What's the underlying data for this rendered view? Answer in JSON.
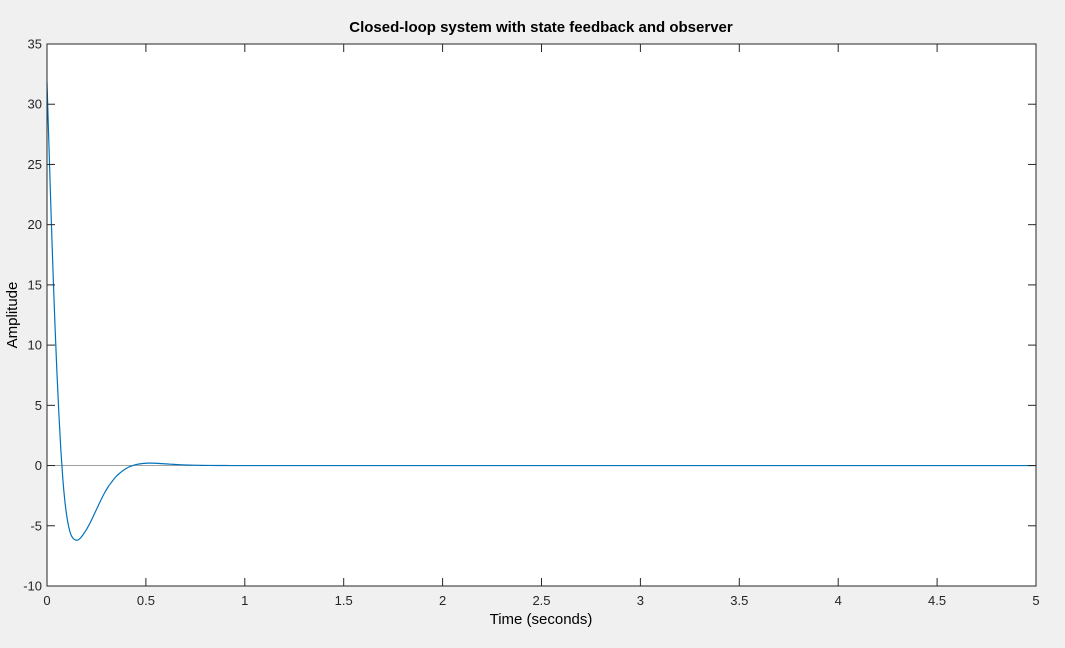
{
  "chart_data": {
    "type": "line",
    "title": "Closed-loop system with state feedback and observer",
    "xlabel": "Time (seconds)",
    "ylabel": "Amplitude",
    "xlim": [
      0,
      5
    ],
    "ylim": [
      -10,
      35
    ],
    "xticks": [
      0,
      0.5,
      1,
      1.5,
      2,
      2.5,
      3,
      3.5,
      4,
      4.5,
      5
    ],
    "xtick_labels": [
      "0",
      "0.5",
      "1",
      "1.5",
      "2",
      "2.5",
      "3",
      "3.5",
      "4",
      "4.5",
      "5"
    ],
    "yticks": [
      -10,
      -5,
      0,
      5,
      10,
      15,
      20,
      25,
      30,
      35
    ],
    "ytick_labels": [
      "-10",
      "-5",
      "0",
      "5",
      "10",
      "15",
      "20",
      "25",
      "30",
      "35"
    ],
    "grid": false,
    "reference_line": 0,
    "series": [
      {
        "color": "#0072bd",
        "x": [
          0,
          0.01,
          0.02,
          0.03,
          0.04,
          0.05,
          0.06,
          0.07,
          0.08,
          0.09,
          0.1,
          0.11,
          0.12,
          0.13,
          0.14,
          0.15,
          0.16,
          0.17,
          0.18,
          0.19,
          0.2,
          0.21,
          0.22,
          0.23,
          0.24,
          0.25,
          0.27,
          0.29,
          0.31,
          0.33,
          0.35,
          0.37,
          0.39,
          0.41,
          0.43,
          0.45,
          0.47,
          0.49,
          0.51,
          0.53,
          0.55,
          0.58,
          0.61,
          0.64,
          0.67,
          0.7,
          0.74,
          0.78,
          0.82,
          0.86,
          0.9,
          0.95,
          1.0,
          1.1,
          1.2,
          1.3,
          1.5,
          2,
          2.5,
          3,
          3.5,
          4,
          4.5,
          5
        ],
        "y": [
          31.8,
          26.5,
          21.2,
          16.3,
          11.8,
          7.8,
          4.3,
          1.3,
          -1.1,
          -2.9,
          -4.2,
          -5.1,
          -5.7,
          -6.0,
          -6.15,
          -6.2,
          -6.15,
          -6.0,
          -5.8,
          -5.55,
          -5.3,
          -5.0,
          -4.7,
          -4.35,
          -4.0,
          -3.65,
          -2.95,
          -2.3,
          -1.75,
          -1.3,
          -0.9,
          -0.6,
          -0.35,
          -0.15,
          -0.02,
          0.08,
          0.14,
          0.18,
          0.2,
          0.2,
          0.19,
          0.16,
          0.13,
          0.1,
          0.07,
          0.05,
          0.03,
          0.015,
          0.008,
          0.004,
          0.002,
          0.001,
          0,
          0,
          0,
          0,
          0,
          0,
          0,
          0,
          0,
          0,
          0,
          0
        ]
      }
    ]
  }
}
